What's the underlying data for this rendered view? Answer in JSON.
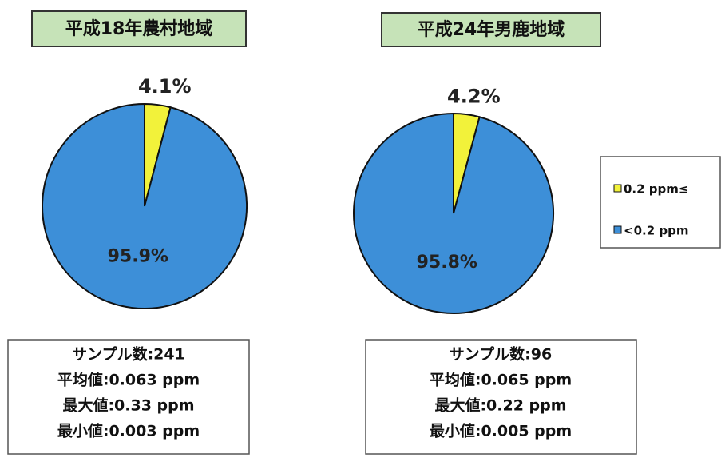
{
  "chart_data": [
    {
      "type": "pie",
      "title": "平成18年農村地域",
      "categories": [
        "0.2 ppm≤",
        "<0.2 ppm"
      ],
      "values": [
        4.1,
        95.9
      ],
      "value_labels": [
        "4.1%",
        "95.9%"
      ],
      "colors": [
        "#f2f23a",
        "#3d8fd8"
      ],
      "annotations": [
        "サンプル数:241",
        "平均値:0.063 ppm",
        "最大値:0.33 ppm",
        "最小値:0.003 ppm"
      ]
    },
    {
      "type": "pie",
      "title": "平成24年男鹿地域",
      "categories": [
        "0.2 ppm≤",
        "<0.2 ppm"
      ],
      "values": [
        4.2,
        95.8
      ],
      "value_labels": [
        "4.2%",
        "95.8%"
      ],
      "colors": [
        "#f2f23a",
        "#3d8fd8"
      ],
      "annotations": [
        "サンプル数:96",
        "平均値:0.065 ppm",
        "最大値:0.22 ppm",
        "最小値:0.005 ppm"
      ]
    }
  ]
}
